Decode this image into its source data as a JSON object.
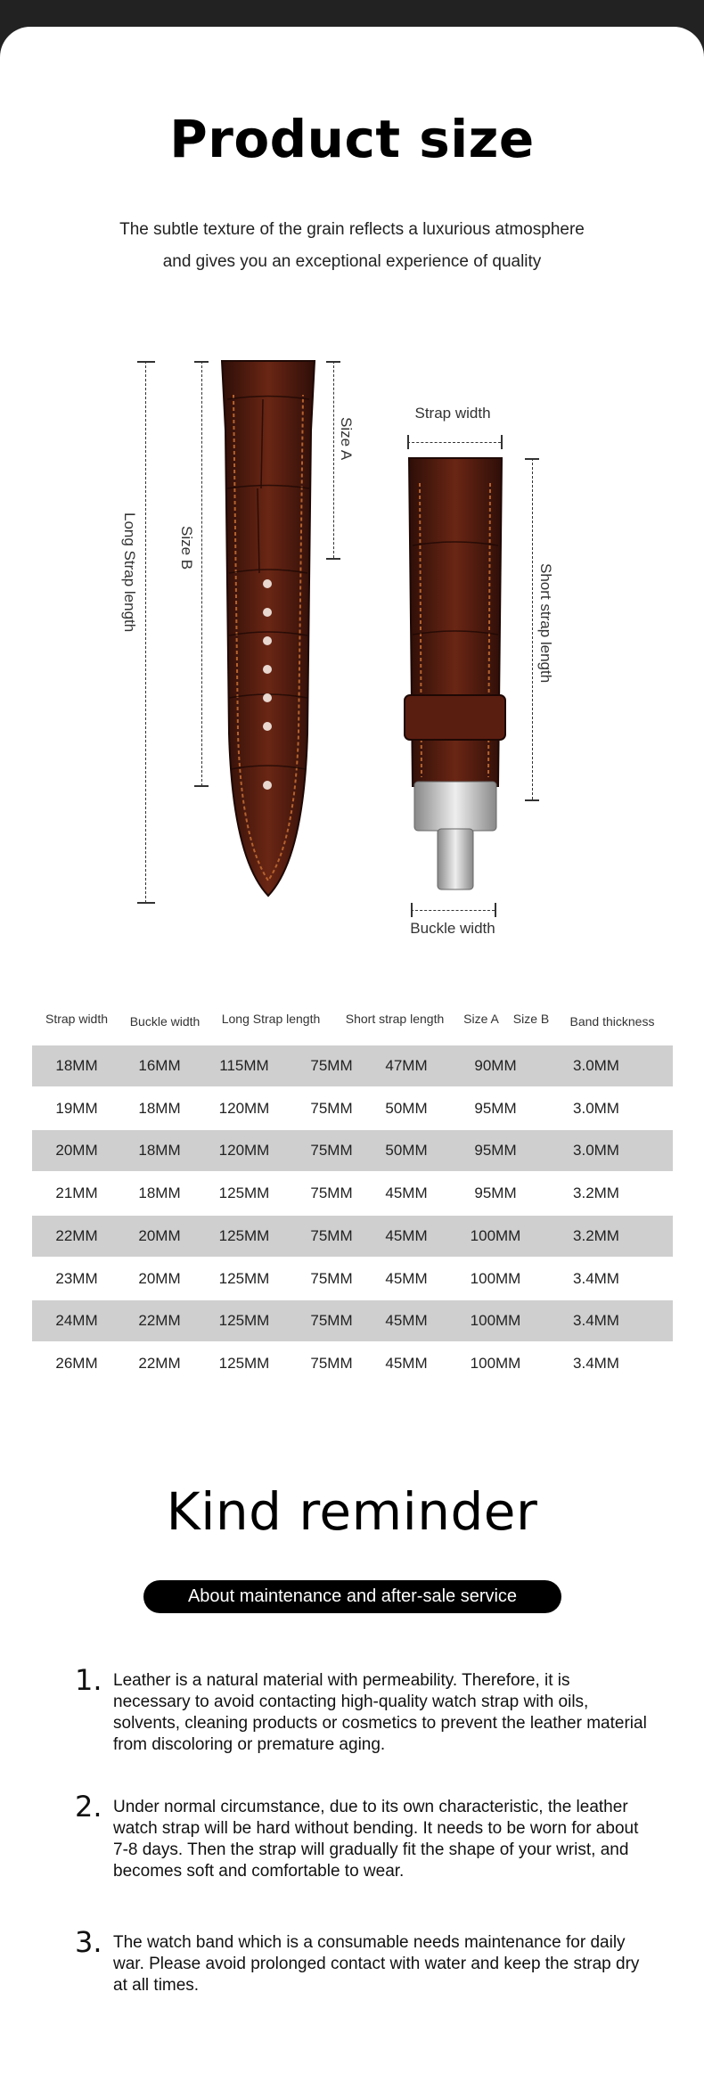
{
  "header": {
    "title": "Product size",
    "subtitle_line1": "The subtle texture of the grain reflects a luxurious atmosphere",
    "subtitle_line2": "and gives you an exceptional experience of quality"
  },
  "diagram": {
    "long_strap_length": "Long Strap length",
    "size_b": "Size B",
    "size_a": "Size A",
    "strap_width": "Strap width",
    "short_strap_length": "Short strap length",
    "buckle_width": "Buckle width",
    "leather_color": "#4a1a10",
    "stitch_color": "#b5622e"
  },
  "table": {
    "headers": [
      "Strap width",
      "Buckle width",
      "Long Strap length",
      "Short strap length",
      "Size A",
      "Size B",
      "Band thickness"
    ],
    "rows": [
      [
        "18MM",
        "16MM",
        "115MM",
        "75MM",
        "47MM",
        "90MM",
        "3.0MM"
      ],
      [
        "19MM",
        "18MM",
        "120MM",
        "75MM",
        "50MM",
        "95MM",
        "3.0MM"
      ],
      [
        "20MM",
        "18MM",
        "120MM",
        "75MM",
        "50MM",
        "95MM",
        "3.0MM"
      ],
      [
        "21MM",
        "18MM",
        "125MM",
        "75MM",
        "45MM",
        "95MM",
        "3.2MM"
      ],
      [
        "22MM",
        "20MM",
        "125MM",
        "75MM",
        "45MM",
        "100MM",
        "3.2MM"
      ],
      [
        "23MM",
        "20MM",
        "125MM",
        "75MM",
        "45MM",
        "100MM",
        "3.4MM"
      ],
      [
        "24MM",
        "22MM",
        "125MM",
        "75MM",
        "45MM",
        "100MM",
        "3.4MM"
      ],
      [
        "26MM",
        "22MM",
        "125MM",
        "75MM",
        "45MM",
        "100MM",
        "3.4MM"
      ]
    ],
    "shade_color": "#cfcfcf"
  },
  "reminder": {
    "title": "Kind reminder",
    "pill": "About maintenance and after-sale service",
    "items": [
      {
        "num": "1.",
        "text": "Leather is a natural material with permeability. Therefore, it is necessary to avoid contacting high-quality watch strap with oils, solvents, cleaning products or cosmetics to prevent the leather material from discoloring or premature aging."
      },
      {
        "num": "2.",
        "text": "Under normal circumstance, due to its own characteristic, the leather watch strap will be hard without bending. It needs to be worn for about 7-8 days. Then the strap will gradually fit the shape of your wrist, and becomes soft and comfortable to wear."
      },
      {
        "num": "3.",
        "text": "The watch band which is a consumable needs maintenance for daily war. Please avoid prolonged contact with water and keep the strap dry at all times."
      }
    ]
  }
}
